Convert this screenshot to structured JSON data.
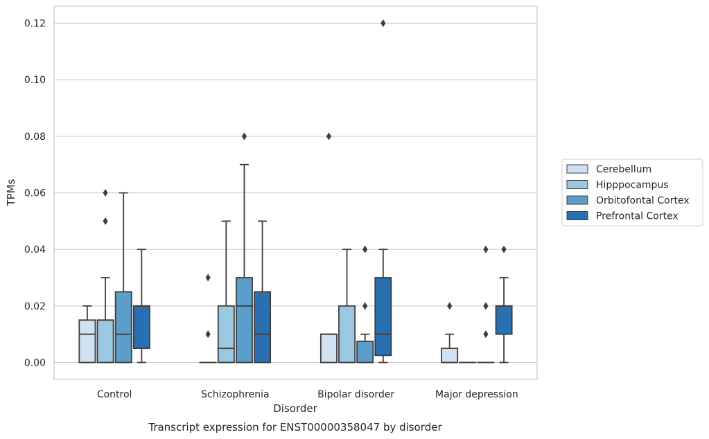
{
  "chart_data": {
    "type": "boxplot",
    "xlabel": "Disorder",
    "ylabel": "TPMs",
    "caption": "Transcript expression for ENST00000358047 by disorder",
    "ylim": [
      -0.006,
      0.126
    ],
    "yticks": [
      0.0,
      0.02,
      0.04,
      0.06,
      0.08,
      0.1,
      0.12
    ],
    "ytick_labels": [
      "0.00",
      "0.02",
      "0.04",
      "0.06",
      "0.08",
      "0.10",
      "0.12"
    ],
    "grid": "horizontal",
    "legend_position": "right",
    "categories": [
      "Control",
      "Schizophrenia",
      "Bipolar disorder",
      "Major depression"
    ],
    "series": [
      {
        "name": "Cerebellum",
        "color": "#d0e1f2",
        "boxes": [
          {
            "whisker_low": 0.0,
            "q1": 0.0,
            "median": 0.01,
            "q3": 0.015,
            "whisker_high": 0.02,
            "outliers": []
          },
          {
            "whisker_low": 0.0,
            "q1": 0.0,
            "median": 0.0,
            "q3": 0.0,
            "whisker_high": 0.0,
            "outliers": [
              0.01,
              0.03
            ]
          },
          {
            "whisker_low": 0.0,
            "q1": 0.0,
            "median": 0.01,
            "q3": 0.01,
            "whisker_high": 0.01,
            "outliers": [
              0.08
            ]
          },
          {
            "whisker_low": 0.0,
            "q1": 0.0,
            "median": 0.0,
            "q3": 0.005,
            "whisker_high": 0.01,
            "outliers": [
              0.02
            ]
          }
        ]
      },
      {
        "name": "Hipppocampus",
        "color": "#9ac8e0",
        "boxes": [
          {
            "whisker_low": 0.0,
            "q1": 0.0,
            "median": 0.015,
            "q3": 0.015,
            "whisker_high": 0.03,
            "outliers": [
              0.05,
              0.06
            ]
          },
          {
            "whisker_low": 0.0,
            "q1": 0.0,
            "median": 0.005,
            "q3": 0.02,
            "whisker_high": 0.05,
            "outliers": []
          },
          {
            "whisker_low": 0.0,
            "q1": 0.0,
            "median": 0.0,
            "q3": 0.02,
            "whisker_high": 0.04,
            "outliers": []
          },
          {
            "whisker_low": 0.0,
            "q1": 0.0,
            "median": 0.0,
            "q3": 0.0,
            "whisker_high": 0.0,
            "outliers": []
          }
        ]
      },
      {
        "name": "Orbitofontal Cortex",
        "color": "#5a9ec9",
        "boxes": [
          {
            "whisker_low": 0.0,
            "q1": 0.0,
            "median": 0.01,
            "q3": 0.025,
            "whisker_high": 0.06,
            "outliers": []
          },
          {
            "whisker_low": 0.0,
            "q1": 0.0,
            "median": 0.02,
            "q3": 0.03,
            "whisker_high": 0.07,
            "outliers": [
              0.08
            ]
          },
          {
            "whisker_low": 0.0,
            "q1": 0.0,
            "median": 0.0,
            "q3": 0.0075,
            "whisker_high": 0.01,
            "outliers": [
              0.02,
              0.04
            ]
          },
          {
            "whisker_low": 0.0,
            "q1": 0.0,
            "median": 0.0,
            "q3": 0.0,
            "whisker_high": 0.0,
            "outliers": [
              0.01,
              0.02,
              0.04
            ]
          }
        ]
      },
      {
        "name": "Prefrontal Cortex",
        "color": "#2a6fb0",
        "boxes": [
          {
            "whisker_low": 0.0,
            "q1": 0.005,
            "median": 0.02,
            "q3": 0.02,
            "whisker_high": 0.04,
            "outliers": []
          },
          {
            "whisker_low": 0.0,
            "q1": 0.0,
            "median": 0.01,
            "q3": 0.025,
            "whisker_high": 0.05,
            "outliers": []
          },
          {
            "whisker_low": 0.0,
            "q1": 0.0025,
            "median": 0.01,
            "q3": 0.03,
            "whisker_high": 0.04,
            "outliers": [
              0.12
            ]
          },
          {
            "whisker_low": 0.0,
            "q1": 0.01,
            "median": 0.02,
            "q3": 0.02,
            "whisker_high": 0.03,
            "outliers": [
              0.04
            ]
          }
        ]
      }
    ]
  }
}
